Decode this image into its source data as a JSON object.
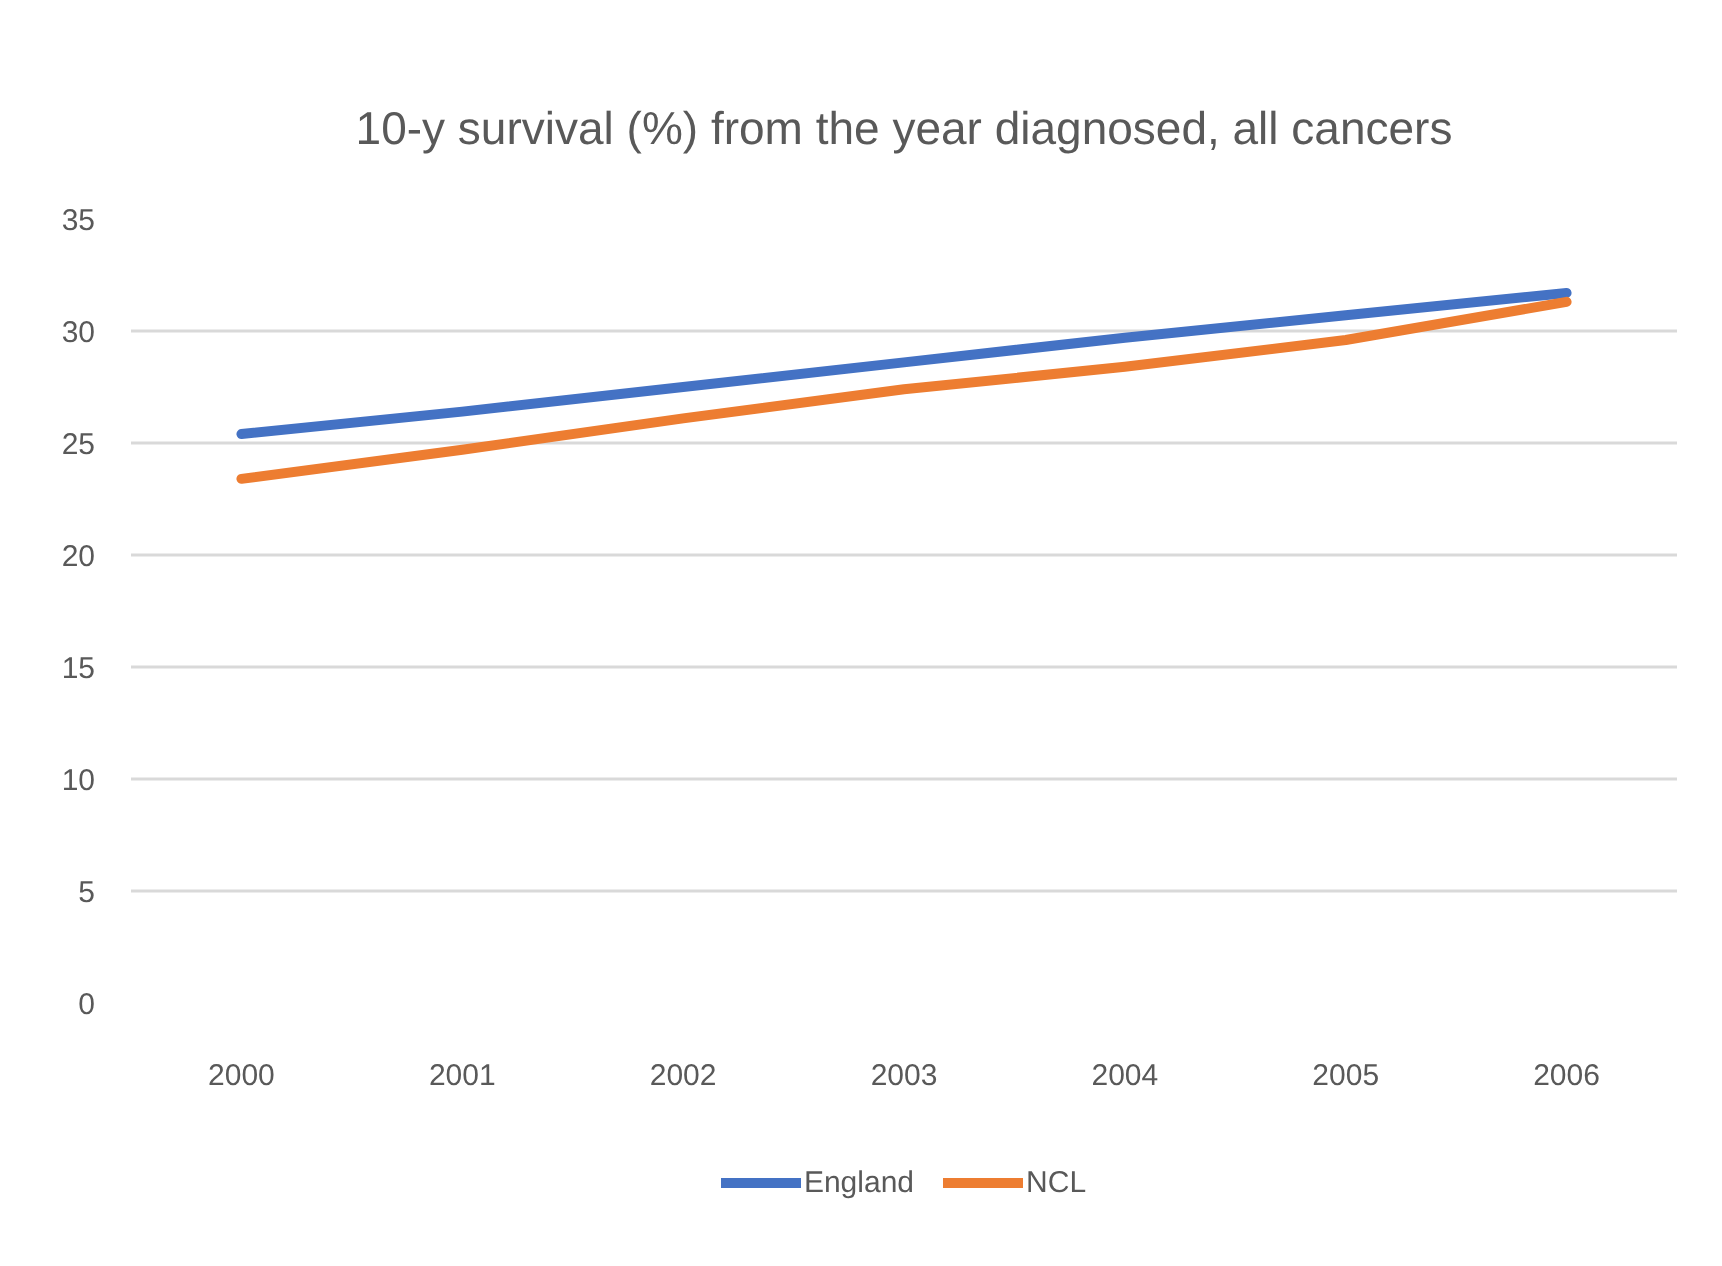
{
  "chart_data": {
    "type": "line",
    "title": "10-y survival (%) from the year diagnosed, all cancers",
    "categories": [
      "2000",
      "2001",
      "2002",
      "2003",
      "2004",
      "2005",
      "2006"
    ],
    "series": [
      {
        "name": "England",
        "color": "#4472c4",
        "values": [
          25.4,
          26.4,
          27.5,
          28.6,
          29.7,
          30.7,
          31.7
        ]
      },
      {
        "name": "NCL",
        "color": "#ed7d31",
        "values": [
          23.4,
          24.7,
          26.1,
          27.4,
          28.4,
          29.6,
          31.3
        ]
      }
    ],
    "ylim": [
      0,
      35
    ],
    "yticks": [
      0,
      5,
      10,
      15,
      20,
      25,
      30,
      35
    ],
    "grid": "y",
    "legend": "bottom"
  }
}
